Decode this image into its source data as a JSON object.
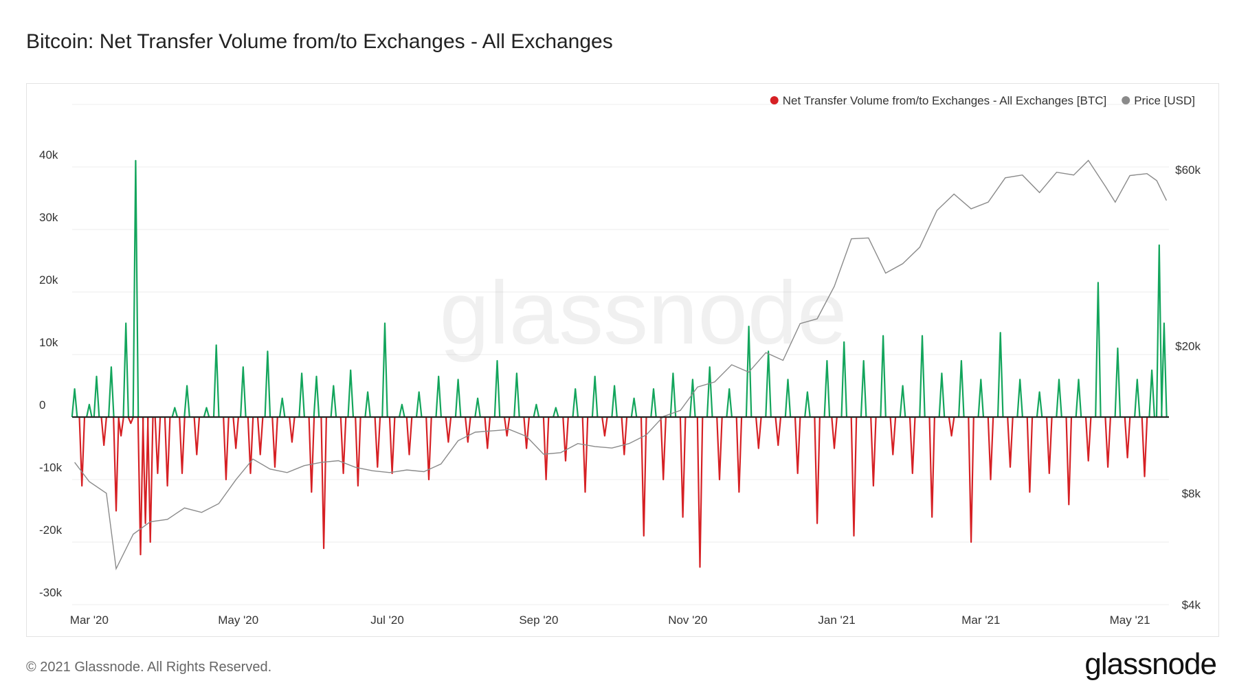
{
  "header": {
    "title": "Bitcoin: Net Transfer Volume from/to Exchanges - All Exchanges"
  },
  "watermark": "glassnode",
  "footer": {
    "copyright": "© 2021 Glassnode. All Rights Reserved.",
    "brand": "glassnode"
  },
  "colors": {
    "positive": "#13a55c",
    "negative": "#d62024",
    "price": "#8a8a8a",
    "zero_line": "#222222",
    "grid": "#eeeeee"
  },
  "chart_data": {
    "type": "bar",
    "title": "Bitcoin: Net Transfer Volume from/to Exchanges - All Exchanges",
    "legend_position": "top-right",
    "grid": true,
    "x_range": [
      "2020-02-23",
      "2021-05-17"
    ],
    "x_ticks": [
      {
        "label": "Mar '20",
        "date": "2020-03-01"
      },
      {
        "label": "May '20",
        "date": "2020-05-01"
      },
      {
        "label": "Jul '20",
        "date": "2020-07-01"
      },
      {
        "label": "Sep '20",
        "date": "2020-09-01"
      },
      {
        "label": "Nov '20",
        "date": "2020-11-01"
      },
      {
        "label": "Jan '21",
        "date": "2021-01-01"
      },
      {
        "label": "Mar '21",
        "date": "2021-03-01"
      },
      {
        "label": "May '21",
        "date": "2021-05-01"
      }
    ],
    "y_left": {
      "ylim": [
        -30000,
        50000
      ],
      "ticks": [
        -30000,
        -20000,
        -10000,
        0,
        10000,
        20000,
        30000,
        40000
      ],
      "tick_labels": [
        "-30k",
        "-20k",
        "-10k",
        "0",
        "10k",
        "20k",
        "30k",
        "40k"
      ]
    },
    "y_right": {
      "scale": "log",
      "ylim": [
        4000,
        90000
      ],
      "ticks": [
        4000,
        8000,
        20000,
        60000
      ],
      "tick_labels": [
        "$4k",
        "$8k",
        "$20k",
        "$60k"
      ]
    },
    "series": [
      {
        "name": "Net Transfer Volume from/to Exchanges - All Exchanges [BTC]",
        "axis": "left",
        "points": [
          [
            "2020-02-24",
            4500
          ],
          [
            "2020-02-27",
            -11000
          ],
          [
            "2020-03-01",
            2000
          ],
          [
            "2020-03-04",
            6500
          ],
          [
            "2020-03-07",
            -4500
          ],
          [
            "2020-03-10",
            8000
          ],
          [
            "2020-03-12",
            -15000
          ],
          [
            "2020-03-14",
            -3000
          ],
          [
            "2020-03-16",
            15000
          ],
          [
            "2020-03-18",
            -1000
          ],
          [
            "2020-03-20",
            41000
          ],
          [
            "2020-03-22",
            -22000
          ],
          [
            "2020-03-24",
            -17000
          ],
          [
            "2020-03-26",
            -20000
          ],
          [
            "2020-03-29",
            -9000
          ],
          [
            "2020-04-02",
            -11000
          ],
          [
            "2020-04-05",
            1500
          ],
          [
            "2020-04-08",
            -9000
          ],
          [
            "2020-04-10",
            5000
          ],
          [
            "2020-04-14",
            -6000
          ],
          [
            "2020-04-18",
            1500
          ],
          [
            "2020-04-22",
            11500
          ],
          [
            "2020-04-26",
            -10000
          ],
          [
            "2020-04-30",
            -5000
          ],
          [
            "2020-05-03",
            8000
          ],
          [
            "2020-05-06",
            -9000
          ],
          [
            "2020-05-10",
            -6000
          ],
          [
            "2020-05-13",
            10500
          ],
          [
            "2020-05-16",
            -8000
          ],
          [
            "2020-05-19",
            3000
          ],
          [
            "2020-05-23",
            -4000
          ],
          [
            "2020-05-27",
            7000
          ],
          [
            "2020-05-31",
            -12000
          ],
          [
            "2020-06-02",
            6500
          ],
          [
            "2020-06-05",
            -21000
          ],
          [
            "2020-06-09",
            5000
          ],
          [
            "2020-06-13",
            -9000
          ],
          [
            "2020-06-16",
            7500
          ],
          [
            "2020-06-19",
            -11000
          ],
          [
            "2020-06-23",
            4000
          ],
          [
            "2020-06-27",
            -8000
          ],
          [
            "2020-06-30",
            15000
          ],
          [
            "2020-07-03",
            -9000
          ],
          [
            "2020-07-07",
            2000
          ],
          [
            "2020-07-10",
            -6000
          ],
          [
            "2020-07-14",
            4000
          ],
          [
            "2020-07-18",
            -10000
          ],
          [
            "2020-07-22",
            6500
          ],
          [
            "2020-07-26",
            -4000
          ],
          [
            "2020-07-30",
            6000
          ],
          [
            "2020-08-03",
            -4000
          ],
          [
            "2020-08-07",
            3000
          ],
          [
            "2020-08-11",
            -5000
          ],
          [
            "2020-08-15",
            9000
          ],
          [
            "2020-08-19",
            -3000
          ],
          [
            "2020-08-23",
            7000
          ],
          [
            "2020-08-27",
            -5000
          ],
          [
            "2020-08-31",
            2000
          ],
          [
            "2020-09-04",
            -10000
          ],
          [
            "2020-09-08",
            1500
          ],
          [
            "2020-09-12",
            -7000
          ],
          [
            "2020-09-16",
            4500
          ],
          [
            "2020-09-20",
            -12000
          ],
          [
            "2020-09-24",
            6500
          ],
          [
            "2020-09-28",
            -3000
          ],
          [
            "2020-10-02",
            5000
          ],
          [
            "2020-10-06",
            -6000
          ],
          [
            "2020-10-10",
            3000
          ],
          [
            "2020-10-14",
            -19000
          ],
          [
            "2020-10-18",
            4500
          ],
          [
            "2020-10-22",
            -10000
          ],
          [
            "2020-10-26",
            7000
          ],
          [
            "2020-10-30",
            -16000
          ],
          [
            "2020-11-03",
            6000
          ],
          [
            "2020-11-06",
            -24000
          ],
          [
            "2020-11-10",
            8000
          ],
          [
            "2020-11-14",
            -10000
          ],
          [
            "2020-11-18",
            4500
          ],
          [
            "2020-11-22",
            -12000
          ],
          [
            "2020-11-26",
            14500
          ],
          [
            "2020-11-30",
            -5000
          ],
          [
            "2020-12-04",
            10500
          ],
          [
            "2020-12-08",
            -4500
          ],
          [
            "2020-12-12",
            6000
          ],
          [
            "2020-12-16",
            -9000
          ],
          [
            "2020-12-20",
            4000
          ],
          [
            "2020-12-24",
            -17000
          ],
          [
            "2020-12-28",
            9000
          ],
          [
            "2020-12-31",
            -5000
          ],
          [
            "2021-01-04",
            12000
          ],
          [
            "2021-01-08",
            -19000
          ],
          [
            "2021-01-12",
            9000
          ],
          [
            "2021-01-16",
            -11000
          ],
          [
            "2021-01-20",
            13000
          ],
          [
            "2021-01-24",
            -6000
          ],
          [
            "2021-01-28",
            5000
          ],
          [
            "2021-02-01",
            -9000
          ],
          [
            "2021-02-05",
            13000
          ],
          [
            "2021-02-09",
            -16000
          ],
          [
            "2021-02-13",
            7000
          ],
          [
            "2021-02-17",
            -3000
          ],
          [
            "2021-02-21",
            9000
          ],
          [
            "2021-02-25",
            -20000
          ],
          [
            "2021-03-01",
            6000
          ],
          [
            "2021-03-05",
            -10000
          ],
          [
            "2021-03-09",
            13500
          ],
          [
            "2021-03-13",
            -8000
          ],
          [
            "2021-03-17",
            6000
          ],
          [
            "2021-03-21",
            -12000
          ],
          [
            "2021-03-25",
            4000
          ],
          [
            "2021-03-29",
            -9000
          ],
          [
            "2021-04-02",
            6000
          ],
          [
            "2021-04-06",
            -14000
          ],
          [
            "2021-04-10",
            6000
          ],
          [
            "2021-04-14",
            -7000
          ],
          [
            "2021-04-18",
            21500
          ],
          [
            "2021-04-22",
            -8000
          ],
          [
            "2021-04-26",
            11000
          ],
          [
            "2021-04-30",
            -6500
          ],
          [
            "2021-05-04",
            6000
          ],
          [
            "2021-05-07",
            -9500
          ],
          [
            "2021-05-10",
            7500
          ],
          [
            "2021-05-13",
            27500
          ],
          [
            "2021-05-15",
            15000
          ]
        ]
      },
      {
        "name": "Price [USD]",
        "axis": "right",
        "points": [
          [
            "2020-02-24",
            9700
          ],
          [
            "2020-03-01",
            8600
          ],
          [
            "2020-03-08",
            8000
          ],
          [
            "2020-03-12",
            5000
          ],
          [
            "2020-03-19",
            6200
          ],
          [
            "2020-03-26",
            6700
          ],
          [
            "2020-04-02",
            6800
          ],
          [
            "2020-04-09",
            7300
          ],
          [
            "2020-04-16",
            7100
          ],
          [
            "2020-04-23",
            7500
          ],
          [
            "2020-04-30",
            8700
          ],
          [
            "2020-05-07",
            9900
          ],
          [
            "2020-05-14",
            9300
          ],
          [
            "2020-05-21",
            9100
          ],
          [
            "2020-05-28",
            9500
          ],
          [
            "2020-06-04",
            9700
          ],
          [
            "2020-06-11",
            9800
          ],
          [
            "2020-06-18",
            9400
          ],
          [
            "2020-06-25",
            9200
          ],
          [
            "2020-07-02",
            9100
          ],
          [
            "2020-07-09",
            9250
          ],
          [
            "2020-07-16",
            9150
          ],
          [
            "2020-07-23",
            9600
          ],
          [
            "2020-07-30",
            11100
          ],
          [
            "2020-08-06",
            11700
          ],
          [
            "2020-08-13",
            11800
          ],
          [
            "2020-08-20",
            11900
          ],
          [
            "2020-08-27",
            11400
          ],
          [
            "2020-09-03",
            10200
          ],
          [
            "2020-09-10",
            10300
          ],
          [
            "2020-09-17",
            10900
          ],
          [
            "2020-09-24",
            10700
          ],
          [
            "2020-10-01",
            10600
          ],
          [
            "2020-10-08",
            10900
          ],
          [
            "2020-10-15",
            11500
          ],
          [
            "2020-10-22",
            12900
          ],
          [
            "2020-10-29",
            13400
          ],
          [
            "2020-11-05",
            15500
          ],
          [
            "2020-11-12",
            16000
          ],
          [
            "2020-11-19",
            17800
          ],
          [
            "2020-11-26",
            17000
          ],
          [
            "2020-12-03",
            19200
          ],
          [
            "2020-12-10",
            18300
          ],
          [
            "2020-12-17",
            23000
          ],
          [
            "2020-12-24",
            23700
          ],
          [
            "2020-12-31",
            29000
          ],
          [
            "2021-01-07",
            39000
          ],
          [
            "2021-01-14",
            39200
          ],
          [
            "2021-01-21",
            31500
          ],
          [
            "2021-01-28",
            33400
          ],
          [
            "2021-02-04",
            37000
          ],
          [
            "2021-02-11",
            46500
          ],
          [
            "2021-02-18",
            51500
          ],
          [
            "2021-02-25",
            47000
          ],
          [
            "2021-03-04",
            49000
          ],
          [
            "2021-03-11",
            57000
          ],
          [
            "2021-03-18",
            58000
          ],
          [
            "2021-03-25",
            52000
          ],
          [
            "2021-04-01",
            59000
          ],
          [
            "2021-04-08",
            58000
          ],
          [
            "2021-04-14",
            63500
          ],
          [
            "2021-04-21",
            54000
          ],
          [
            "2021-04-25",
            49000
          ],
          [
            "2021-05-01",
            57800
          ],
          [
            "2021-05-08",
            58500
          ],
          [
            "2021-05-12",
            56000
          ],
          [
            "2021-05-16",
            49500
          ]
        ]
      }
    ]
  }
}
